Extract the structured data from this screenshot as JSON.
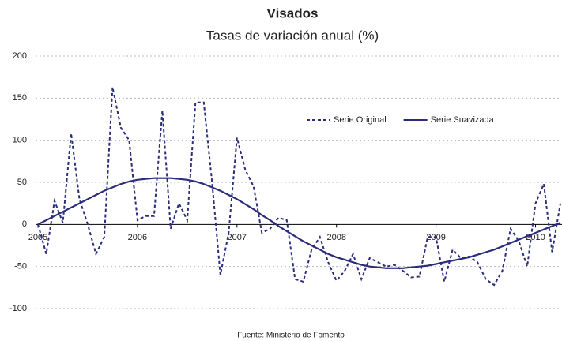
{
  "chart_data": {
    "type": "line",
    "title": "Visados",
    "subtitle": "Tasas de variación anual (%)",
    "source": "Fuente: Ministerio de Fomento",
    "categories": [
      "2005",
      null,
      null,
      null,
      null,
      null,
      null,
      null,
      null,
      null,
      null,
      null,
      "2006",
      null,
      null,
      null,
      null,
      null,
      null,
      null,
      null,
      null,
      null,
      null,
      "2007",
      null,
      null,
      null,
      null,
      null,
      null,
      null,
      null,
      null,
      null,
      null,
      "2008",
      null,
      null,
      null,
      null,
      null,
      null,
      null,
      null,
      null,
      null,
      null,
      "2009",
      null,
      null,
      null,
      null,
      null,
      null,
      null,
      null,
      null,
      null,
      null,
      "2010",
      null,
      null,
      null
    ],
    "series": [
      {
        "name": "Serie Original",
        "color": "#2b2d7c",
        "dash": true,
        "values": [
          0,
          -35,
          28,
          2,
          108,
          30,
          0,
          -35,
          -15,
          163,
          115,
          100,
          5,
          10,
          10,
          135,
          -5,
          25,
          5,
          145,
          145,
          50,
          -60,
          -10,
          103,
          65,
          45,
          -10,
          -5,
          8,
          5,
          -65,
          -68,
          -30,
          -15,
          -45,
          -67,
          -55,
          -35,
          -65,
          -40,
          -45,
          -50,
          -48,
          -55,
          -63,
          -62,
          -15,
          -15,
          -68,
          -30,
          -40,
          -38,
          -45,
          -65,
          -72,
          -55,
          -5,
          -20,
          -50,
          25,
          48,
          -33,
          25
        ]
      },
      {
        "name": "Serie Suavizada",
        "color": "#2b2d7c",
        "dash": false,
        "values": [
          0,
          5,
          10,
          15,
          20,
          25,
          30,
          35,
          40,
          44,
          48,
          51,
          53,
          54,
          55,
          55,
          55,
          54,
          53,
          51,
          48,
          44,
          40,
          35,
          30,
          24,
          18,
          11,
          5,
          -2,
          -8,
          -14,
          -20,
          -25,
          -30,
          -35,
          -39,
          -42,
          -45,
          -48,
          -50,
          -51,
          -52,
          -52,
          -52,
          -51,
          -50,
          -49,
          -47,
          -45,
          -43,
          -41,
          -39,
          -36,
          -33,
          -30,
          -26,
          -22,
          -18,
          -14,
          -10,
          -6,
          -2,
          2
        ]
      }
    ],
    "ylim": [
      -100,
      200
    ],
    "yticks": [
      -100,
      -50,
      0,
      50,
      100,
      150,
      200
    ],
    "grid": true,
    "legend": "top-right"
  }
}
